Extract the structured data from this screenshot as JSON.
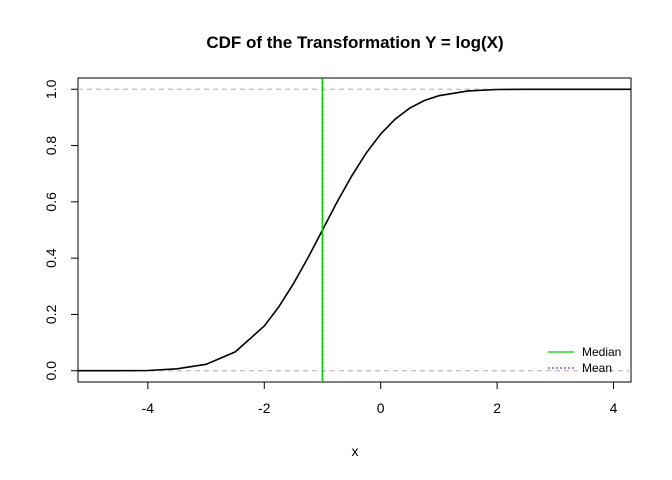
{
  "chart_data": {
    "type": "line",
    "title": "CDF of the Transformation Y = log(X)",
    "xlabel": "x",
    "ylabel": "",
    "xlim": [
      -5.2,
      4.3
    ],
    "ylim": [
      -0.04,
      1.04
    ],
    "x_ticks": [
      -4,
      -2,
      0,
      2,
      4
    ],
    "y_ticks": [
      0.0,
      0.2,
      0.4,
      0.6,
      0.8,
      1.0
    ],
    "x_tick_labels": [
      "-4",
      "-2",
      "0",
      "2",
      "4"
    ],
    "y_tick_labels": [
      "0.0",
      "0.2",
      "0.4",
      "0.6",
      "0.8",
      "1.0"
    ],
    "series": [
      {
        "color": "#000000",
        "style": "solid",
        "x": [
          -5.2,
          -4.5,
          -4.0,
          -3.5,
          -3.0,
          -2.5,
          -2.0,
          -1.75,
          -1.5,
          -1.25,
          -1.0,
          -0.75,
          -0.5,
          -0.25,
          0.0,
          0.25,
          0.5,
          0.75,
          1.0,
          1.5,
          2.0,
          2.5,
          3.0,
          4.3
        ],
        "y": [
          0.0,
          0.0,
          0.001,
          0.007,
          0.023,
          0.067,
          0.159,
          0.227,
          0.309,
          0.401,
          0.5,
          0.599,
          0.691,
          0.773,
          0.841,
          0.894,
          0.933,
          0.96,
          0.977,
          0.994,
          0.999,
          1.0,
          1.0,
          1.0
        ]
      }
    ],
    "reference_lines": {
      "horizontal": [
        0,
        1
      ],
      "horizontal_color": "#bebebe",
      "median_x": -1,
      "median_color": "#00cd00",
      "mean_x": -1,
      "mean_color": "#6a3d9a"
    },
    "legend": {
      "position": "bottom-right",
      "entries": [
        {
          "label": "Median",
          "color": "#00cd00",
          "style": "solid"
        },
        {
          "label": "Mean",
          "color": "#6a3d9a",
          "style": "dotted"
        }
      ]
    },
    "grid": false
  }
}
